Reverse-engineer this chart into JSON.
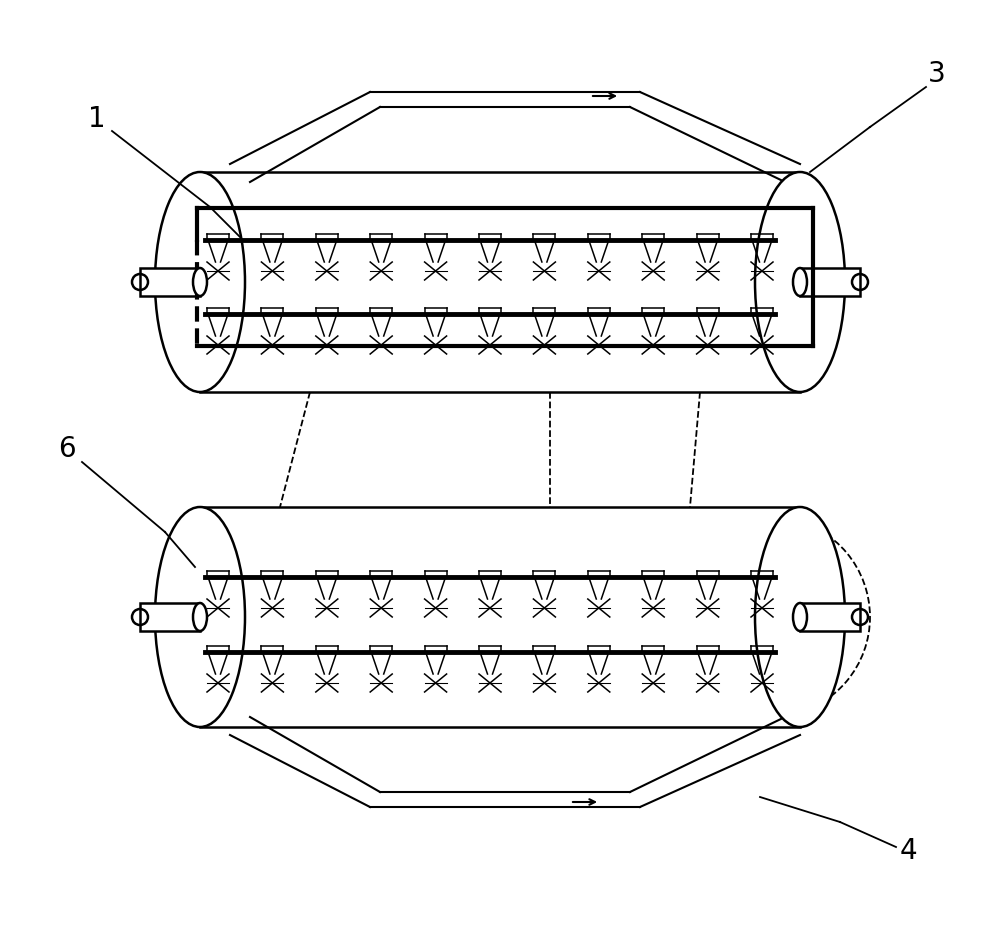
{
  "bg_color": "#ffffff",
  "line_color": "#000000",
  "fig_width": 10.0,
  "fig_height": 9.27,
  "label_fontsize": 20
}
